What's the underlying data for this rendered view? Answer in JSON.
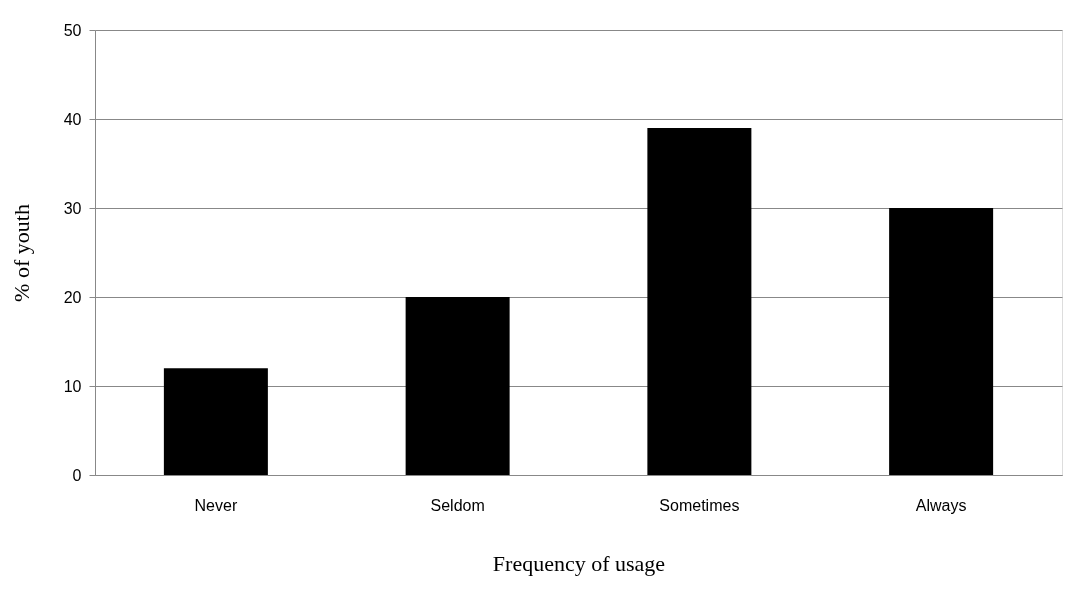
{
  "chart_data": {
    "type": "bar",
    "xlabel": "Frequency of usage",
    "ylabel": "%  of youth",
    "categories": [
      "Never",
      "Seldom",
      "Sometimes",
      "Always"
    ],
    "values": [
      12,
      20,
      39,
      30
    ],
    "color": "#000000",
    "ylim": [
      0,
      50
    ],
    "yticks": [
      0,
      10,
      20,
      30,
      40,
      50
    ],
    "grid": "y"
  }
}
